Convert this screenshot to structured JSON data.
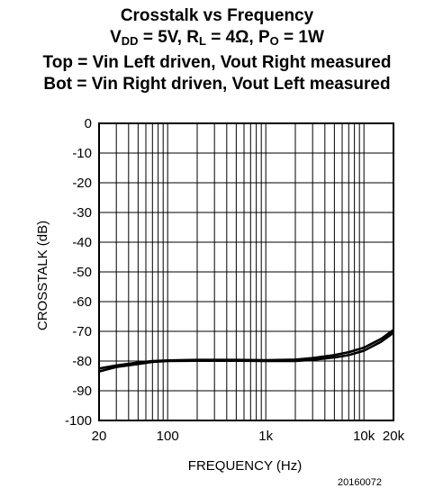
{
  "chart_data": {
    "type": "line",
    "title": "Crosstalk vs Frequency",
    "subtitle": {
      "vdd_prefix": "V",
      "vdd_sub": "DD",
      "vdd_value": " = 5V, R",
      "rl_sub": "L",
      "rl_value": " = 4Ω, P",
      "po_sub": "O",
      "po_value": " = 1W"
    },
    "notes": [
      "Top = Vin Left driven, Vout Right measured",
      "Bot = Vin Right driven, Vout Left measured"
    ],
    "xlabel": "FREQUENCY (Hz)",
    "ylabel": "CROSSTALK (dB)",
    "x_scale": "log",
    "xlim": [
      20,
      20000
    ],
    "ylim": [
      -100,
      0
    ],
    "x_ticks": [
      {
        "value": 20,
        "label": "20"
      },
      {
        "value": 100,
        "label": "100"
      },
      {
        "value": 1000,
        "label": "1k"
      },
      {
        "value": 10000,
        "label": "10k"
      },
      {
        "value": 20000,
        "label": "20k"
      }
    ],
    "y_ticks": [
      0,
      -10,
      -20,
      -30,
      -40,
      -50,
      -60,
      -70,
      -80,
      -90,
      -100
    ],
    "grid": true,
    "series": [
      {
        "points": [
          [
            20,
            -82.5
          ],
          [
            30,
            -81.5
          ],
          [
            50,
            -80.5
          ],
          [
            70,
            -80
          ],
          [
            100,
            -79.8
          ],
          [
            200,
            -79.6
          ],
          [
            500,
            -79.6
          ],
          [
            1000,
            -79.7
          ],
          [
            2000,
            -79.5
          ],
          [
            3000,
            -79
          ],
          [
            5000,
            -78
          ],
          [
            7000,
            -77
          ],
          [
            10000,
            -75.5
          ],
          [
            15000,
            -72.5
          ],
          [
            20000,
            -69.5
          ]
        ]
      },
      {
        "points": [
          [
            20,
            -83.5
          ],
          [
            30,
            -82
          ],
          [
            50,
            -81
          ],
          [
            70,
            -80.3
          ],
          [
            100,
            -80
          ],
          [
            200,
            -79.9
          ],
          [
            500,
            -79.9
          ],
          [
            1000,
            -80
          ],
          [
            2000,
            -80
          ],
          [
            3000,
            -79.6
          ],
          [
            5000,
            -78.8
          ],
          [
            7000,
            -78
          ],
          [
            10000,
            -76.5
          ],
          [
            15000,
            -73.5
          ],
          [
            20000,
            -70.5
          ]
        ]
      }
    ]
  },
  "figure_code": "20160072"
}
